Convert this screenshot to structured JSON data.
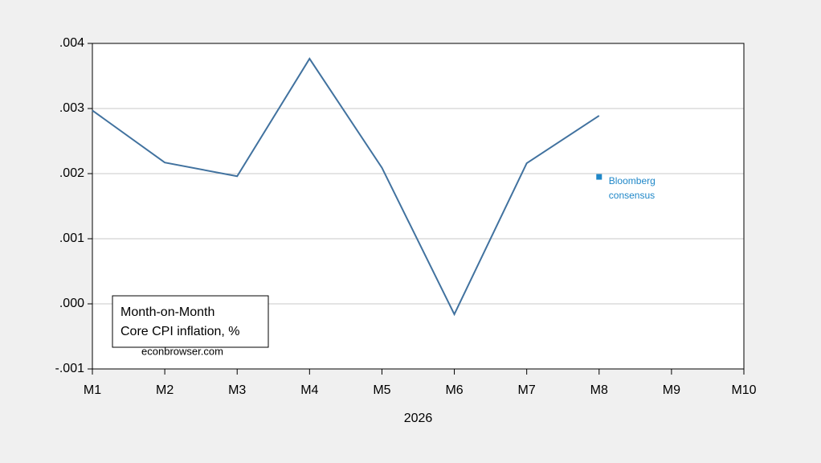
{
  "chart_data": {
    "type": "line",
    "categories": [
      "M1",
      "M2",
      "M3",
      "M4",
      "M5",
      "M6",
      "M7",
      "M8",
      "M9",
      "M10"
    ],
    "xlabel": "2026",
    "series": [
      {
        "color": "#41729f",
        "values": [
          0.00297,
          0.00217,
          0.00196,
          0.003765,
          0.00209,
          -0.00016,
          0.00216,
          0.00289,
          null,
          null
        ]
      },
      {
        "name": "Bloomberg consensus",
        "color": "#1f87c8",
        "marker": "square",
        "values": [
          null,
          null,
          null,
          null,
          null,
          null,
          null,
          0.00195,
          null,
          null
        ]
      }
    ],
    "ylim": [
      -0.001,
      0.004
    ],
    "yticks": [
      {
        "value": -0.001,
        "label": "-.001"
      },
      {
        "value": 0,
        "label": ".000"
      },
      {
        "value": 0.001,
        "label": ".001"
      },
      {
        "value": 0.002,
        "label": ".002"
      },
      {
        "value": 0.003,
        "label": ".003"
      },
      {
        "value": 0.004,
        "label": ".004"
      }
    ],
    "grid": true,
    "text_box": [
      "Month-on-Month",
      "Core CPI inflation, %"
    ],
    "source": "econbrowser.com"
  }
}
